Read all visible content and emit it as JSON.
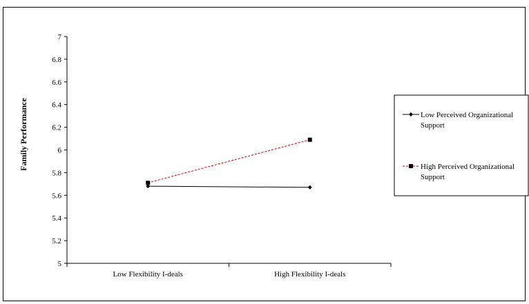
{
  "chart_data": {
    "type": "line",
    "title": "",
    "xlabel": "",
    "ylabel": "Family Performance",
    "categories": [
      "Low Flexibility I-deals",
      "High Flexibility I-deals"
    ],
    "ylim": [
      5,
      7
    ],
    "yticks": [
      "5",
      "5.2",
      "5.4",
      "5.6",
      "5.8",
      "6",
      "6.2",
      "6.4",
      "6.6",
      "6.8",
      "7"
    ],
    "grid": false,
    "legend_position": "right",
    "series": [
      {
        "name": "Low Perceived Organizational Support",
        "values": [
          5.68,
          5.67
        ],
        "color": "#000000",
        "line_style": "solid",
        "marker": "diamond",
        "legend_lines": [
          "Low Perceived Organizational",
          "Support"
        ]
      },
      {
        "name": "High Perceived Organizational Support",
        "values": [
          5.71,
          6.09
        ],
        "color": "#cc0000",
        "line_style": "dashed",
        "marker": "square",
        "legend_lines": [
          "High Perceived Organizational",
          "Support"
        ]
      }
    ]
  }
}
